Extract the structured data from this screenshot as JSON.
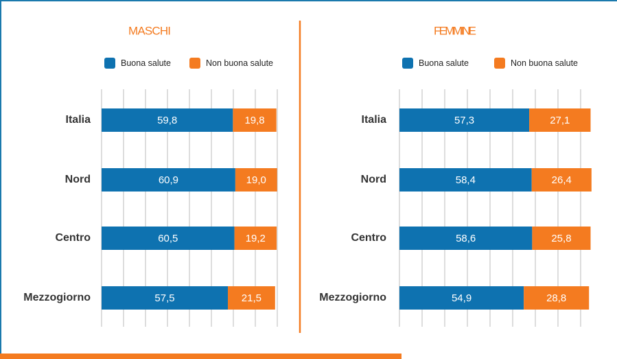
{
  "chart_data": [
    {
      "type": "bar",
      "orientation": "horizontal",
      "stacked": true,
      "title": "MASCHI",
      "categories": [
        "Italia",
        "Nord",
        "Centro",
        "Mezzogiorno"
      ],
      "series": [
        {
          "name": "Buona salute",
          "color": "#0e72b0",
          "values": [
            59.8,
            60.9,
            60.5,
            57.5
          ],
          "value_labels": [
            "59,8",
            "60,9",
            "60,5",
            "57,5"
          ]
        },
        {
          "name": "Non buona salute",
          "color": "#f47b20",
          "values": [
            19.8,
            19.0,
            19.2,
            21.5
          ],
          "value_labels": [
            "19,8",
            "19,0",
            "19,2",
            "21,5"
          ]
        }
      ],
      "xlim": [
        0,
        80
      ],
      "xticks": [
        0,
        10,
        20,
        30,
        40,
        50,
        60,
        70,
        80
      ],
      "grid": true,
      "legend": "top"
    },
    {
      "type": "bar",
      "orientation": "horizontal",
      "stacked": true,
      "title": "FEMMINE",
      "categories": [
        "Italia",
        "Nord",
        "Centro",
        "Mezzogiorno"
      ],
      "series": [
        {
          "name": "Buona salute",
          "color": "#0e72b0",
          "values": [
            57.3,
            58.4,
            58.6,
            54.9
          ],
          "value_labels": [
            "57,3",
            "58,4",
            "58,6",
            "54,9"
          ]
        },
        {
          "name": "Non buona salute",
          "color": "#f47b20",
          "values": [
            27.1,
            26.4,
            25.8,
            28.8
          ],
          "value_labels": [
            "27,1",
            "26,4",
            "25,8",
            "28,8"
          ]
        }
      ],
      "xlim": [
        0,
        80
      ],
      "xticks": [
        0,
        10,
        20,
        30,
        40,
        50,
        60,
        70,
        80
      ],
      "grid": true,
      "legend": "top"
    }
  ]
}
